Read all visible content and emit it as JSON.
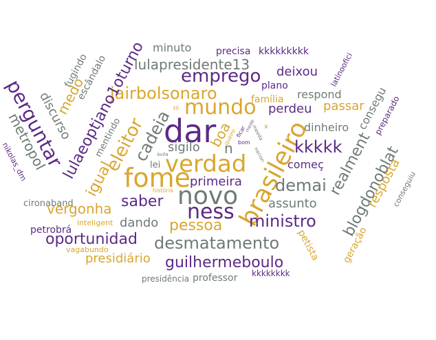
{
  "palette": {
    "purple": "#5b2a86",
    "gold": "#d9a62e",
    "gray": "#6e7b73"
  },
  "words": [
    {
      "text": "dar",
      "color": "purple"
    },
    {
      "text": "verdad",
      "color": "gold"
    },
    {
      "text": "fome",
      "color": "gold"
    },
    {
      "text": "novo",
      "color": "gray"
    },
    {
      "text": "mundo",
      "color": "gold"
    },
    {
      "text": "brasileiro",
      "color": "gold"
    },
    {
      "text": "ness",
      "color": "purple"
    },
    {
      "text": "desmatamento",
      "color": "gray"
    },
    {
      "text": "jairbolsonaro",
      "color": "gold"
    },
    {
      "text": "emprego",
      "color": "purple"
    },
    {
      "text": "lulapresidente13",
      "color": "gray"
    },
    {
      "text": "perguntar",
      "color": "purple"
    },
    {
      "text": "lulaeoptjano1oturno",
      "color": "purple"
    },
    {
      "text": "eleitor",
      "color": "gold"
    },
    {
      "text": "cadeia",
      "color": "gray"
    },
    {
      "text": "igual",
      "color": "gold"
    },
    {
      "text": "saber",
      "color": "purple"
    },
    {
      "text": "pessoa",
      "color": "gold"
    },
    {
      "text": "ministro",
      "color": "purple"
    },
    {
      "text": "demai",
      "color": "gray"
    },
    {
      "text": "kkkkk",
      "color": "purple"
    },
    {
      "text": "realment",
      "color": "gray"
    },
    {
      "text": "blogdonoblat",
      "color": "gray"
    },
    {
      "text": "guilhermeboulo",
      "color": "purple"
    },
    {
      "text": "oportunidad",
      "color": "purple"
    },
    {
      "text": "vergonha",
      "color": "gold"
    },
    {
      "text": "metropol",
      "color": "gray"
    },
    {
      "text": "discurso",
      "color": "gray"
    },
    {
      "text": "medo",
      "color": "gold"
    },
    {
      "text": "presidiário",
      "color": "gold"
    },
    {
      "text": "resposta",
      "color": "gold"
    },
    {
      "text": "passar",
      "color": "gold"
    },
    {
      "text": "perdeu",
      "color": "purple"
    },
    {
      "text": "boa",
      "color": "gold"
    },
    {
      "text": "primeira",
      "color": "purple"
    },
    {
      "text": "dando",
      "color": "gray"
    },
    {
      "text": "assunto",
      "color": "gray"
    },
    {
      "text": "sigilo",
      "color": "gray"
    },
    {
      "text": "começ",
      "color": "purple"
    },
    {
      "text": "deixou",
      "color": "purple"
    },
    {
      "text": "dinheiro",
      "color": "gray"
    },
    {
      "text": "consegu",
      "color": "gray"
    },
    {
      "text": "família",
      "color": "gold"
    },
    {
      "text": "plano",
      "color": "purple"
    },
    {
      "text": "respond",
      "color": "gray"
    },
    {
      "text": "minuto",
      "color": "gray"
    },
    {
      "text": "precisa",
      "color": "purple"
    },
    {
      "text": "kkkkkkkkk",
      "color": "purple"
    },
    {
      "text": "fugindo",
      "color": "gray"
    },
    {
      "text": "escândalo",
      "color": "gray"
    },
    {
      "text": "mentindo",
      "color": "gray"
    },
    {
      "text": "n",
      "color": "gray"
    },
    {
      "text": "lei",
      "color": "gray"
    },
    {
      "text": "cironaband",
      "color": "gray"
    },
    {
      "text": "petrobrá",
      "color": "purple"
    },
    {
      "text": "inteligent",
      "color": "gold"
    },
    {
      "text": "vagabundo",
      "color": "gold"
    },
    {
      "text": "presidência",
      "color": "gray"
    },
    {
      "text": "professor",
      "color": "gray"
    },
    {
      "text": "kkkkkkkk",
      "color": "purple"
    },
    {
      "text": "petista",
      "color": "gold"
    },
    {
      "text": "geração",
      "color": "gold"
    },
    {
      "text": "preparado",
      "color": "purple"
    },
    {
      "text": "conseguiu",
      "color": "gray"
    },
    {
      "text": "latinoofici",
      "color": "purple"
    },
    {
      "text": "nikolas_dm",
      "color": "purple"
    },
    {
      "text": "história",
      "color": "gold"
    },
    {
      "text": "ávila",
      "color": "gray"
    },
    {
      "text": "tô",
      "color": "gold"
    },
    {
      "text": "bom",
      "color": "purple"
    },
    {
      "text": "x",
      "color": "gold"
    },
    {
      "text": "ficar",
      "color": "purple"
    },
    {
      "text": "queiro",
      "color": "gold"
    },
    {
      "text": "meeda",
      "color": "gray"
    },
    {
      "text": "nacion",
      "color": "gray"
    },
    {
      "text": "mede",
      "color": "gray"
    }
  ]
}
